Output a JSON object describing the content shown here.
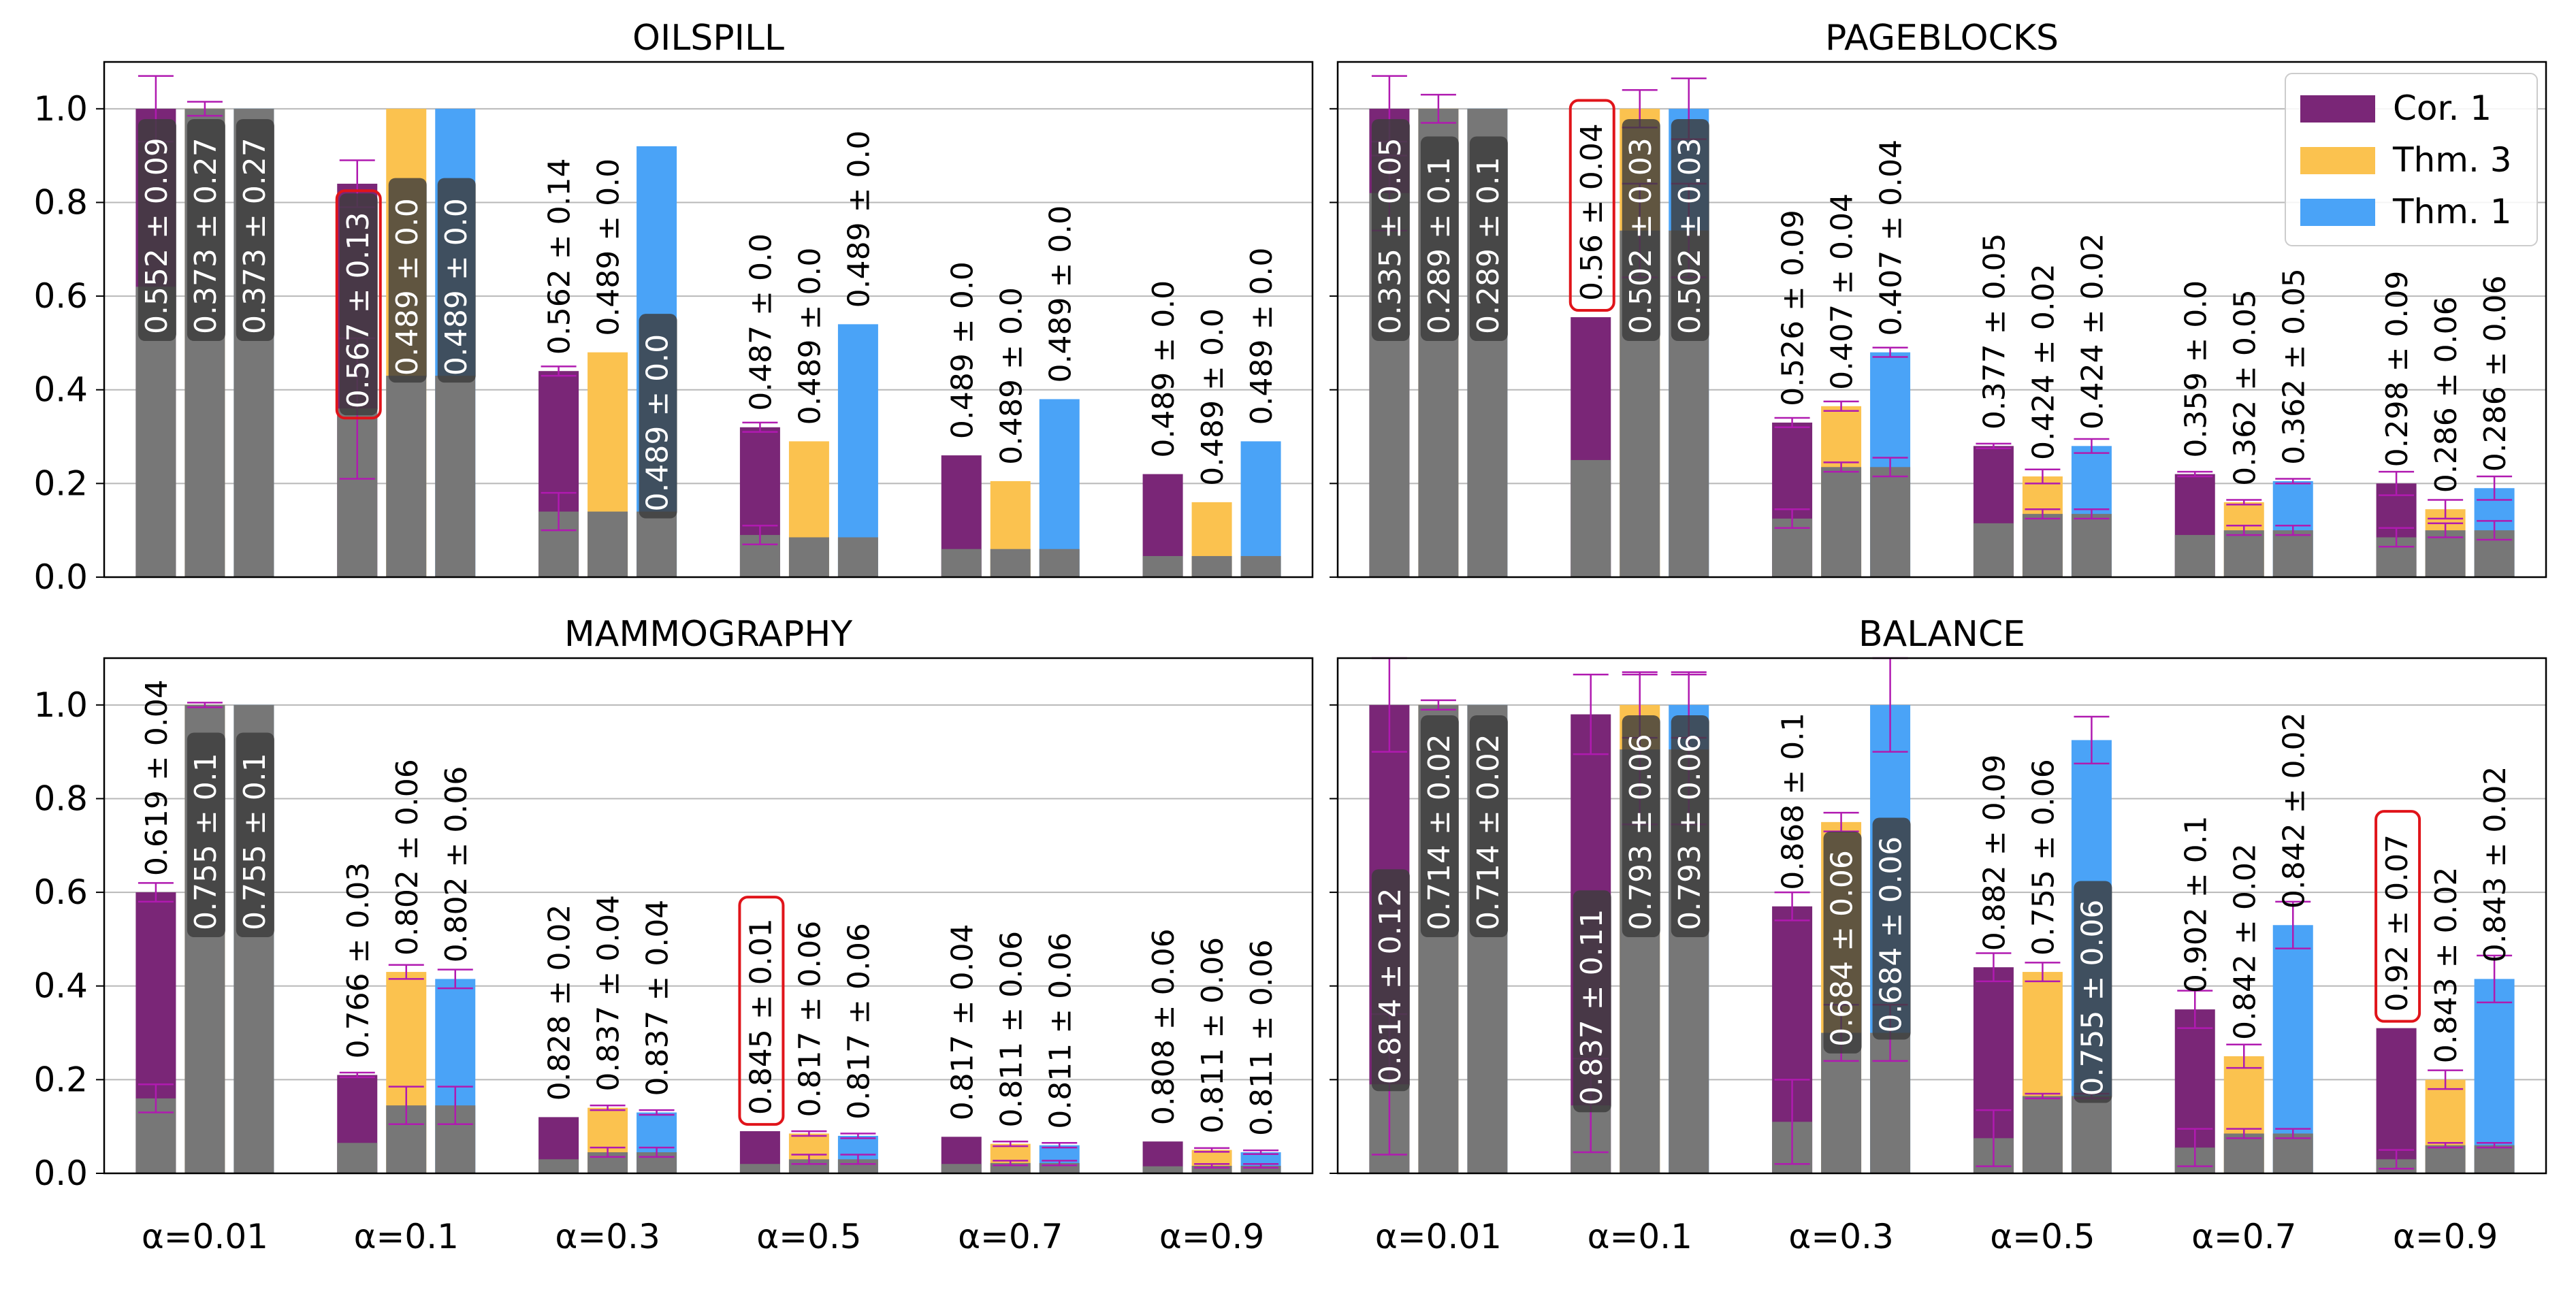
{
  "colors": {
    "cor1": "#7a2677",
    "thm3": "#fbc24f",
    "thm1": "#4aa3f7",
    "base": "#777777",
    "error": "#b01ab0",
    "grid": "#b8b8b8",
    "highlight": "#e0141a",
    "label_box": "#3d3d3d"
  },
  "figure": {
    "x_tick_labels": [
      "α=0.01",
      "α=0.1",
      "α=0.3",
      "α=0.5",
      "α=0.7",
      "α=0.9"
    ],
    "y_tick_labels": [
      "0.0",
      "0.2",
      "0.4",
      "0.6",
      "0.8",
      "1.0"
    ]
  },
  "legend": {
    "entries": [
      {
        "name": "Cor. 1",
        "color": "#7a2677"
      },
      {
        "name": "Thm. 3",
        "color": "#fbc24f"
      },
      {
        "name": "Thm. 1",
        "color": "#4aa3f7"
      }
    ]
  },
  "chart_data": [
    {
      "type": "bar",
      "title": "OILSPILL",
      "categories": [
        "α=0.01",
        "α=0.1",
        "α=0.3",
        "α=0.5",
        "α=0.7",
        "α=0.9"
      ],
      "series_names": [
        "Cor. 1",
        "Thm. 3",
        "Thm. 1"
      ],
      "ylim": [
        0,
        1.1
      ],
      "yticks": [
        0,
        0.2,
        0.4,
        0.6,
        0.8,
        1.0
      ],
      "grid": true,
      "bars": [
        [
          {
            "top": 1.0,
            "base": 0.62,
            "err": 0.07,
            "base_err": 0.0,
            "label": "0.552 ± 0.09",
            "label_style": "boxed",
            "highlight": false
          },
          {
            "top": 1.0,
            "base": 1.0,
            "err": 0.015,
            "base_err": 0.0,
            "label": "0.373 ± 0.27",
            "label_style": "boxed",
            "highlight": false
          },
          {
            "top": 1.0,
            "base": 1.0,
            "err": 0.0,
            "base_err": 0.0,
            "label": "0.373 ± 0.27",
            "label_style": "boxed",
            "highlight": false
          }
        ],
        [
          {
            "top": 0.84,
            "base": 0.36,
            "err": 0.05,
            "base_err": 0.15,
            "label": "0.567 ± 0.13",
            "label_style": "boxed",
            "highlight": true
          },
          {
            "top": 1.0,
            "base": 0.43,
            "err": 0.0,
            "base_err": 0.0,
            "label": "0.489 ± 0.0",
            "label_style": "boxed",
            "highlight": false
          },
          {
            "top": 1.0,
            "base": 0.43,
            "err": 0.0,
            "base_err": 0.0,
            "label": "0.489 ± 0.0",
            "label_style": "boxed",
            "highlight": false
          }
        ],
        [
          {
            "top": 0.44,
            "base": 0.14,
            "err": 0.01,
            "base_err": 0.04,
            "label": "0.562 ± 0.14",
            "label_style": "plain",
            "highlight": false
          },
          {
            "top": 0.48,
            "base": 0.14,
            "err": 0.0,
            "base_err": 0.0,
            "label": "0.489 ± 0.0",
            "label_style": "plain",
            "highlight": false
          },
          {
            "top": 0.92,
            "base": 0.14,
            "err": 0.0,
            "base_err": 0.0,
            "label": "0.489 ± 0.0",
            "label_style": "boxed",
            "highlight": false
          }
        ],
        [
          {
            "top": 0.32,
            "base": 0.09,
            "err": 0.01,
            "base_err": 0.02,
            "label": "0.487 ± 0.0",
            "label_style": "plain",
            "highlight": false
          },
          {
            "top": 0.29,
            "base": 0.085,
            "err": 0.0,
            "base_err": 0.0,
            "label": "0.489 ± 0.0",
            "label_style": "plain",
            "highlight": false
          },
          {
            "top": 0.54,
            "base": 0.085,
            "err": 0.0,
            "base_err": 0.0,
            "label": "0.489 ± 0.0",
            "label_style": "plain",
            "highlight": false
          }
        ],
        [
          {
            "top": 0.26,
            "base": 0.06,
            "err": 0.0,
            "base_err": 0.0,
            "label": "0.489 ± 0.0",
            "label_style": "plain",
            "highlight": false
          },
          {
            "top": 0.205,
            "base": 0.06,
            "err": 0.0,
            "base_err": 0.0,
            "label": "0.489 ± 0.0",
            "label_style": "plain",
            "highlight": false
          },
          {
            "top": 0.38,
            "base": 0.06,
            "err": 0.0,
            "base_err": 0.0,
            "label": "0.489 ± 0.0",
            "label_style": "plain",
            "highlight": false
          }
        ],
        [
          {
            "top": 0.22,
            "base": 0.045,
            "err": 0.0,
            "base_err": 0.0,
            "label": "0.489 ± 0.0",
            "label_style": "plain",
            "highlight": false
          },
          {
            "top": 0.16,
            "base": 0.045,
            "err": 0.0,
            "base_err": 0.0,
            "label": "0.489 ± 0.0",
            "label_style": "plain",
            "highlight": false
          },
          {
            "top": 0.29,
            "base": 0.045,
            "err": 0.0,
            "base_err": 0.0,
            "label": "0.489 ± 0.0",
            "label_style": "plain",
            "highlight": false
          }
        ]
      ]
    },
    {
      "type": "bar",
      "title": "PAGEBLOCKS",
      "categories": [
        "α=0.01",
        "α=0.1",
        "α=0.3",
        "α=0.5",
        "α=0.7",
        "α=0.9"
      ],
      "series_names": [
        "Cor. 1",
        "Thm. 3",
        "Thm. 1"
      ],
      "ylim": [
        0,
        1.1
      ],
      "yticks": [
        0,
        0.2,
        0.4,
        0.6,
        0.8,
        1.0
      ],
      "grid": true,
      "bars": [
        [
          {
            "top": 1.0,
            "base": 0.82,
            "err": 0.07,
            "base_err": 0.08,
            "label": "0.335 ± 0.05",
            "label_style": "boxed",
            "highlight": false
          },
          {
            "top": 1.0,
            "base": 1.0,
            "err": 0.03,
            "base_err": 0.0,
            "label": "0.289 ± 0.1",
            "label_style": "boxed",
            "highlight": false
          },
          {
            "top": 1.0,
            "base": 1.0,
            "err": 0.0,
            "base_err": 0.0,
            "label": "0.289 ± 0.1",
            "label_style": "boxed",
            "highlight": false
          }
        ],
        [
          {
            "top": 0.555,
            "base": 0.25,
            "err": 0.0,
            "base_err": 0.0,
            "label": "0.56 ± 0.04",
            "label_style": "plain",
            "highlight": true
          },
          {
            "top": 1.0,
            "base": 0.74,
            "err": 0.04,
            "base_err": 0.1,
            "label": "0.502 ± 0.03",
            "label_style": "boxed",
            "highlight": false
          },
          {
            "top": 1.0,
            "base": 0.74,
            "err": 0.065,
            "base_err": 0.1,
            "label": "0.502 ± 0.03",
            "label_style": "boxed",
            "highlight": false
          }
        ],
        [
          {
            "top": 0.33,
            "base": 0.125,
            "err": 0.01,
            "base_err": 0.02,
            "label": "0.526 ± 0.09",
            "label_style": "plain",
            "highlight": false
          },
          {
            "top": 0.365,
            "base": 0.235,
            "err": 0.01,
            "base_err": 0.01,
            "label": "0.407 ± 0.04",
            "label_style": "plain",
            "highlight": false
          },
          {
            "top": 0.48,
            "base": 0.235,
            "err": 0.01,
            "base_err": 0.02,
            "label": "0.407 ± 0.04",
            "label_style": "plain",
            "highlight": false
          }
        ],
        [
          {
            "top": 0.28,
            "base": 0.115,
            "err": 0.005,
            "base_err": 0.0,
            "label": "0.377 ± 0.05",
            "label_style": "plain",
            "highlight": false
          },
          {
            "top": 0.215,
            "base": 0.135,
            "err": 0.015,
            "base_err": 0.01,
            "label": "0.424 ± 0.02",
            "label_style": "plain",
            "highlight": false
          },
          {
            "top": 0.28,
            "base": 0.135,
            "err": 0.015,
            "base_err": 0.01,
            "label": "0.424 ± 0.02",
            "label_style": "plain",
            "highlight": false
          }
        ],
        [
          {
            "top": 0.22,
            "base": 0.09,
            "err": 0.005,
            "base_err": 0.0,
            "label": "0.359 ± 0.0",
            "label_style": "plain",
            "highlight": false
          },
          {
            "top": 0.16,
            "base": 0.1,
            "err": 0.005,
            "base_err": 0.01,
            "label": "0.362 ± 0.05",
            "label_style": "plain",
            "highlight": false
          },
          {
            "top": 0.205,
            "base": 0.1,
            "err": 0.005,
            "base_err": 0.01,
            "label": "0.362 ± 0.05",
            "label_style": "plain",
            "highlight": false
          }
        ],
        [
          {
            "top": 0.2,
            "base": 0.085,
            "err": 0.025,
            "base_err": 0.02,
            "label": "0.298 ± 0.09",
            "label_style": "plain",
            "highlight": false
          },
          {
            "top": 0.145,
            "base": 0.1,
            "err": 0.02,
            "base_err": 0.015,
            "label": "0.286 ± 0.06",
            "label_style": "plain",
            "highlight": false
          },
          {
            "top": 0.19,
            "base": 0.1,
            "err": 0.025,
            "base_err": 0.02,
            "label": "0.286 ± 0.06",
            "label_style": "plain",
            "highlight": false
          }
        ]
      ]
    },
    {
      "type": "bar",
      "title": "MAMMOGRAPHY",
      "categories": [
        "α=0.01",
        "α=0.1",
        "α=0.3",
        "α=0.5",
        "α=0.7",
        "α=0.9"
      ],
      "series_names": [
        "Cor. 1",
        "Thm. 3",
        "Thm. 1"
      ],
      "ylim": [
        0,
        1.1
      ],
      "yticks": [
        0,
        0.2,
        0.4,
        0.6,
        0.8,
        1.0
      ],
      "grid": true,
      "bars": [
        [
          {
            "top": 0.6,
            "base": 0.16,
            "err": 0.02,
            "base_err": 0.03,
            "label": "0.619 ± 0.04",
            "label_style": "plain",
            "highlight": false
          },
          {
            "top": 1.0,
            "base": 1.0,
            "err": 0.005,
            "base_err": 0.0,
            "label": "0.755 ± 0.1",
            "label_style": "boxed",
            "highlight": false
          },
          {
            "top": 1.0,
            "base": 1.0,
            "err": 0.0,
            "base_err": 0.0,
            "label": "0.755 ± 0.1",
            "label_style": "boxed",
            "highlight": false
          }
        ],
        [
          {
            "top": 0.21,
            "base": 0.065,
            "err": 0.005,
            "base_err": 0.0,
            "label": "0.766 ± 0.03",
            "label_style": "plain",
            "highlight": false
          },
          {
            "top": 0.43,
            "base": 0.145,
            "err": 0.015,
            "base_err": 0.04,
            "label": "0.802 ± 0.06",
            "label_style": "plain",
            "highlight": false
          },
          {
            "top": 0.415,
            "base": 0.145,
            "err": 0.02,
            "base_err": 0.04,
            "label": "0.802 ± 0.06",
            "label_style": "plain",
            "highlight": false
          }
        ],
        [
          {
            "top": 0.12,
            "base": 0.03,
            "err": 0.0,
            "base_err": 0.0,
            "label": "0.828 ± 0.02",
            "label_style": "plain",
            "highlight": false
          },
          {
            "top": 0.14,
            "base": 0.045,
            "err": 0.005,
            "base_err": 0.01,
            "label": "0.837 ± 0.04",
            "label_style": "plain",
            "highlight": false
          },
          {
            "top": 0.13,
            "base": 0.045,
            "err": 0.005,
            "base_err": 0.01,
            "label": "0.837 ± 0.04",
            "label_style": "plain",
            "highlight": false
          }
        ],
        [
          {
            "top": 0.09,
            "base": 0.02,
            "err": 0.0,
            "base_err": 0.0,
            "label": "0.845 ± 0.01",
            "label_style": "plain",
            "highlight": true
          },
          {
            "top": 0.085,
            "base": 0.03,
            "err": 0.005,
            "base_err": 0.01,
            "label": "0.817 ± 0.06",
            "label_style": "plain",
            "highlight": false
          },
          {
            "top": 0.08,
            "base": 0.03,
            "err": 0.005,
            "base_err": 0.01,
            "label": "0.817 ± 0.06",
            "label_style": "plain",
            "highlight": false
          }
        ],
        [
          {
            "top": 0.078,
            "base": 0.02,
            "err": 0.0,
            "base_err": 0.0,
            "label": "0.817 ± 0.04",
            "label_style": "plain",
            "highlight": false
          },
          {
            "top": 0.063,
            "base": 0.022,
            "err": 0.005,
            "base_err": 0.005,
            "label": "0.811 ± 0.06",
            "label_style": "plain",
            "highlight": false
          },
          {
            "top": 0.06,
            "base": 0.022,
            "err": 0.005,
            "base_err": 0.005,
            "label": "0.811 ± 0.06",
            "label_style": "plain",
            "highlight": false
          }
        ],
        [
          {
            "top": 0.068,
            "base": 0.015,
            "err": 0.0,
            "base_err": 0.0,
            "label": "0.808 ± 0.06",
            "label_style": "plain",
            "highlight": false
          },
          {
            "top": 0.05,
            "base": 0.016,
            "err": 0.004,
            "base_err": 0.004,
            "label": "0.811 ± 0.06",
            "label_style": "plain",
            "highlight": false
          },
          {
            "top": 0.045,
            "base": 0.016,
            "err": 0.004,
            "base_err": 0.004,
            "label": "0.811 ± 0.06",
            "label_style": "plain",
            "highlight": false
          }
        ]
      ]
    },
    {
      "type": "bar",
      "title": "BALANCE",
      "categories": [
        "α=0.01",
        "α=0.1",
        "α=0.3",
        "α=0.5",
        "α=0.7",
        "α=0.9"
      ],
      "series_names": [
        "Cor. 1",
        "Thm. 3",
        "Thm. 1"
      ],
      "ylim": [
        0,
        1.1
      ],
      "yticks": [
        0,
        0.2,
        0.4,
        0.6,
        0.8,
        1.0
      ],
      "grid": true,
      "bars": [
        [
          {
            "top": 1.0,
            "base": 0.19,
            "err": 0.1,
            "base_err": 0.15,
            "label": "0.814 ± 0.12",
            "label_style": "boxed",
            "highlight": false
          },
          {
            "top": 1.0,
            "base": 1.0,
            "err": 0.01,
            "base_err": 0.0,
            "label": "0.714 ± 0.02",
            "label_style": "boxed",
            "highlight": false
          },
          {
            "top": 1.0,
            "base": 1.0,
            "err": 0.0,
            "base_err": 0.0,
            "label": "0.714 ± 0.02",
            "label_style": "boxed",
            "highlight": false
          }
        ],
        [
          {
            "top": 0.98,
            "base": 0.145,
            "err": 0.085,
            "base_err": 0.1,
            "label": "0.837 ± 0.11",
            "label_style": "boxed",
            "highlight": false
          },
          {
            "top": 1.0,
            "base": 0.905,
            "err": 0.07,
            "base_err": 0.16,
            "label": "0.793 ± 0.06",
            "label_style": "boxed",
            "highlight": false
          },
          {
            "top": 1.0,
            "base": 0.905,
            "err": 0.07,
            "base_err": 0.16,
            "label": "0.793 ± 0.06",
            "label_style": "boxed",
            "highlight": false
          }
        ],
        [
          {
            "top": 0.57,
            "base": 0.11,
            "err": 0.03,
            "base_err": 0.09,
            "label": "0.868 ± 0.1",
            "label_style": "plain",
            "highlight": false
          },
          {
            "top": 0.75,
            "base": 0.3,
            "err": 0.02,
            "base_err": 0.06,
            "label": "0.684 ± 0.06",
            "label_style": "boxed",
            "highlight": false
          },
          {
            "top": 1.0,
            "base": 0.3,
            "err": 0.1,
            "base_err": 0.06,
            "label": "0.684 ± 0.06",
            "label_style": "boxed",
            "highlight": false
          }
        ],
        [
          {
            "top": 0.44,
            "base": 0.075,
            "err": 0.03,
            "base_err": 0.06,
            "label": "0.882 ± 0.09",
            "label_style": "plain",
            "highlight": false
          },
          {
            "top": 0.43,
            "base": 0.165,
            "err": 0.02,
            "base_err": 0.005,
            "label": "0.755 ± 0.06",
            "label_style": "plain",
            "highlight": false
          },
          {
            "top": 0.925,
            "base": 0.165,
            "err": 0.05,
            "base_err": 0.005,
            "label": "0.755 ± 0.06",
            "label_style": "boxed",
            "highlight": false
          }
        ],
        [
          {
            "top": 0.35,
            "base": 0.055,
            "err": 0.04,
            "base_err": 0.04,
            "label": "0.902 ± 0.1",
            "label_style": "plain",
            "highlight": false
          },
          {
            "top": 0.25,
            "base": 0.085,
            "err": 0.025,
            "base_err": 0.01,
            "label": "0.842 ± 0.02",
            "label_style": "plain",
            "highlight": false
          },
          {
            "top": 0.53,
            "base": 0.085,
            "err": 0.05,
            "base_err": 0.01,
            "label": "0.842 ± 0.02",
            "label_style": "plain",
            "highlight": false
          }
        ],
        [
          {
            "top": 0.31,
            "base": 0.03,
            "err": 0.0,
            "base_err": 0.02,
            "label": "0.92 ± 0.07",
            "label_style": "plain",
            "highlight": true
          },
          {
            "top": 0.2,
            "base": 0.06,
            "err": 0.02,
            "base_err": 0.005,
            "label": "0.843 ± 0.02",
            "label_style": "plain",
            "highlight": false
          },
          {
            "top": 0.415,
            "base": 0.06,
            "err": 0.05,
            "base_err": 0.005,
            "label": "0.843 ± 0.02",
            "label_style": "plain",
            "highlight": false
          }
        ]
      ]
    }
  ]
}
